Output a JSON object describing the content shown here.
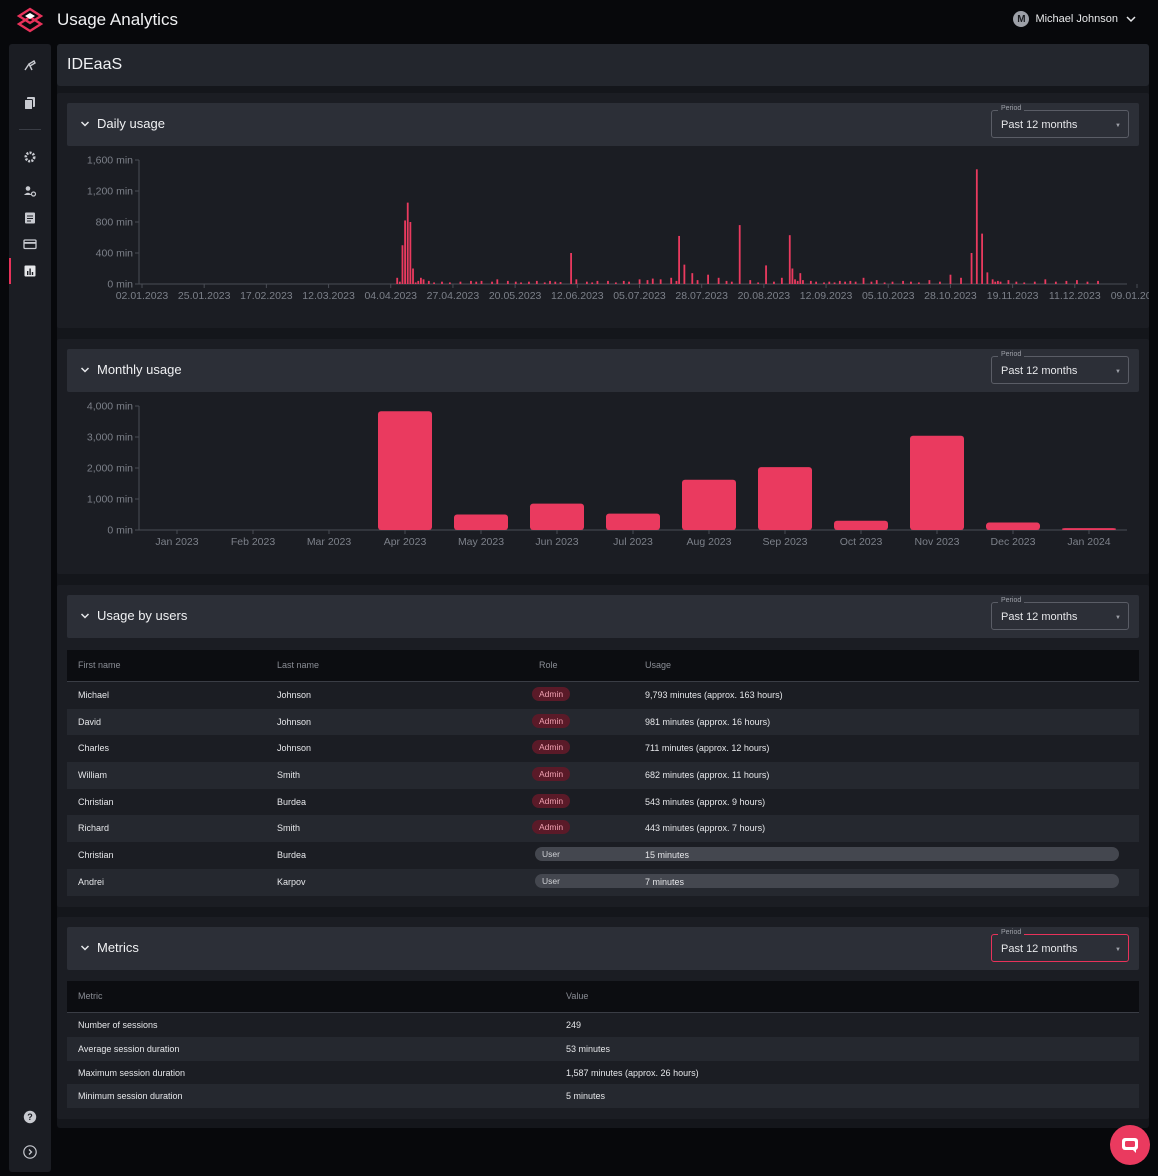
{
  "app": {
    "title": "Usage Analytics"
  },
  "user": {
    "initial": "M",
    "name": "Michael Johnson"
  },
  "page": {
    "title": "IDEaaS"
  },
  "period_label": "Period",
  "period_value": "Past 12 months",
  "daily": {
    "title": "Daily usage",
    "chart_data": {
      "type": "bar",
      "ylim": [
        0,
        1600
      ],
      "yticks": [
        "1,600 min",
        "1,200 min",
        "800 min",
        "400 min",
        "0 min"
      ],
      "xticks": [
        "02.01.2023",
        "25.01.2023",
        "17.02.2023",
        "12.03.2023",
        "04.04.2023",
        "27.04.2023",
        "20.05.2023",
        "12.06.2023",
        "05.07.2023",
        "28.07.2023",
        "20.08.2023",
        "12.09.2023",
        "05.10.2023",
        "28.10.2023",
        "19.11.2023",
        "11.12.2023",
        "09.01.2024"
      ],
      "x": [
        98,
        99,
        100,
        101,
        102,
        103,
        104,
        105,
        106,
        107,
        108,
        110,
        112,
        115,
        118,
        122,
        126,
        128,
        130,
        134,
        136,
        140,
        143,
        145,
        148,
        151,
        154,
        156,
        158,
        160,
        164,
        166,
        170,
        172,
        174,
        178,
        181,
        184,
        186,
        190,
        193,
        195,
        198,
        202,
        204,
        205,
        207,
        210,
        212,
        216,
        220,
        223,
        225,
        228,
        232,
        235,
        238,
        241,
        244,
        247,
        248,
        249,
        250,
        251,
        252,
        255,
        257,
        260,
        262,
        264,
        266,
        268,
        270,
        272,
        275,
        278,
        280,
        283,
        286,
        290,
        293,
        296,
        300,
        304,
        308,
        312,
        316,
        318,
        320,
        322,
        324,
        325,
        326,
        327,
        330,
        333,
        336,
        340,
        344,
        348,
        352,
        356,
        360,
        364
      ],
      "values": [
        80,
        30,
        500,
        820,
        1050,
        800,
        200,
        20,
        40,
        80,
        60,
        40,
        20,
        30,
        20,
        30,
        40,
        30,
        40,
        30,
        60,
        40,
        30,
        20,
        30,
        40,
        20,
        40,
        30,
        25,
        400,
        60,
        30,
        20,
        40,
        40,
        20,
        40,
        30,
        60,
        50,
        70,
        60,
        80,
        40,
        620,
        250,
        140,
        50,
        120,
        80,
        40,
        30,
        760,
        50,
        20,
        240,
        30,
        80,
        630,
        200,
        60,
        40,
        140,
        50,
        40,
        30,
        20,
        30,
        20,
        40,
        30,
        40,
        30,
        80,
        30,
        50,
        20,
        30,
        40,
        30,
        20,
        50,
        30,
        120,
        80,
        400,
        1480,
        650,
        150,
        60,
        30,
        40,
        30,
        50,
        30,
        20,
        30,
        60,
        30,
        40,
        50,
        30,
        40
      ]
    }
  },
  "monthly": {
    "title": "Monthly usage",
    "chart_data": {
      "type": "bar",
      "ylim": [
        0,
        4000
      ],
      "yticks": [
        "4,000 min",
        "3,000 min",
        "2,000 min",
        "1,000 min",
        "0 min"
      ],
      "categories": [
        "Jan 2023",
        "Feb 2023",
        "Mar 2023",
        "Apr 2023",
        "May 2023",
        "Jun 2023",
        "Jul 2023",
        "Aug 2023",
        "Sep 2023",
        "Oct 2023",
        "Nov 2023",
        "Dec 2023",
        "Jan 2024"
      ],
      "values": [
        0,
        0,
        0,
        3830,
        500,
        850,
        530,
        1620,
        2030,
        300,
        3040,
        240,
        60
      ]
    }
  },
  "users": {
    "title": "Usage by users",
    "headers": {
      "first": "First name",
      "last": "Last name",
      "role": "Role",
      "usage": "Usage"
    },
    "rows": [
      {
        "first": "Michael",
        "last": "Johnson",
        "role": "Admin",
        "usage": "9,793 minutes (approx. 163 hours)"
      },
      {
        "first": "David",
        "last": "Johnson",
        "role": "Admin",
        "usage": "981 minutes (approx. 16 hours)"
      },
      {
        "first": "Charles",
        "last": "Johnson",
        "role": "Admin",
        "usage": "711 minutes (approx. 12 hours)"
      },
      {
        "first": "William",
        "last": "Smith",
        "role": "Admin",
        "usage": "682 minutes (approx. 11 hours)"
      },
      {
        "first": "Christian",
        "last": "Burdea",
        "role": "Admin",
        "usage": "543 minutes (approx. 9 hours)"
      },
      {
        "first": "Richard",
        "last": "Smith",
        "role": "Admin",
        "usage": "443 minutes (approx. 7 hours)"
      },
      {
        "first": "Christian",
        "last": "Burdea",
        "role": "User",
        "usage": "15 minutes"
      },
      {
        "first": "Andrei",
        "last": "Karpov",
        "role": "User",
        "usage": "7 minutes"
      }
    ]
  },
  "metrics": {
    "title": "Metrics",
    "headers": {
      "metric": "Metric",
      "value": "Value"
    },
    "rows": [
      {
        "metric": "Number of sessions",
        "value": "249"
      },
      {
        "metric": "Average session duration",
        "value": "53 minutes"
      },
      {
        "metric": "Maximum session duration",
        "value": "1,587 minutes (approx. 26 hours)"
      },
      {
        "metric": "Minimum session duration",
        "value": "5 minutes"
      }
    ]
  },
  "colors": {
    "accent": "#e8325a",
    "bar": "#ea3a5f"
  }
}
